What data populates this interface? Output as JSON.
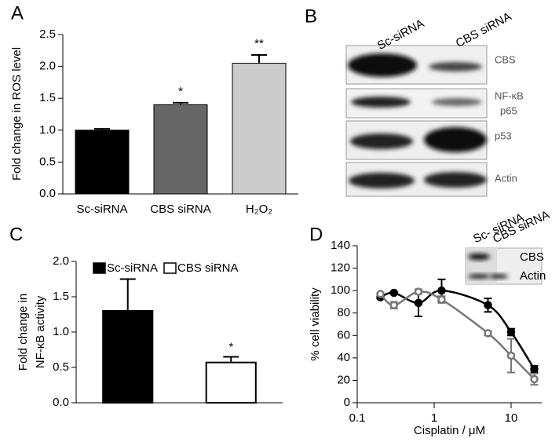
{
  "chart_data": [
    {
      "type": "bar",
      "panel": "A",
      "ylabel": "Fold change in ROS level",
      "categories": [
        "Sc-siRNA",
        "CBS siRNA",
        "H₂O₂"
      ],
      "values": [
        1.0,
        1.4,
        2.05
      ],
      "errors": [
        0.02,
        0.03,
        0.13
      ],
      "annotations": [
        null,
        "*",
        "**"
      ],
      "colors": [
        "#000000",
        "#666666",
        "#cccccc"
      ],
      "ylim": [
        0,
        2.5
      ],
      "yticks": [
        {
          "value": 0,
          "label": "0.0"
        },
        0.5,
        {
          "value": 1,
          "label": "1.0"
        },
        1.5,
        {
          "value": 2,
          "label": "2.0"
        },
        2.5
      ]
    },
    {
      "type": "bar",
      "panel": "C",
      "ylabel": [
        "Fold change in",
        "NF-κB activity"
      ],
      "categories": [
        null
      ],
      "series": [
        {
          "name": "Sc-siRNA",
          "color": "#000000",
          "values": [
            1.3
          ],
          "errors": [
            0.45
          ]
        },
        {
          "name": "CBS siRNA",
          "color": "#ffffff",
          "values": [
            0.57
          ],
          "errors": [
            0.08
          ],
          "annotation": "*"
        }
      ],
      "ylim": [
        0,
        2
      ],
      "yticks": [
        {
          "value": 0,
          "label": "0.0"
        },
        0.5,
        {
          "value": 1,
          "label": "1.0"
        },
        1.5,
        {
          "value": 2,
          "label": "2.0"
        }
      ]
    },
    {
      "type": "scatter",
      "panel": "D",
      "ylabel": "% cell viability",
      "xlabel": "Cisplatin / μM",
      "log_x": true,
      "x": [
        0.2,
        0.3,
        0.625,
        1.25,
        5,
        10,
        20
      ],
      "series": [
        {
          "color": "#000000",
          "values": [
            94,
            98,
            89,
            100,
            87,
            63,
            30
          ],
          "errors": [
            1,
            1,
            12,
            10,
            6,
            3,
            3
          ]
        },
        {
          "color": "#777777",
          "values": [
            97,
            87,
            99,
            92,
            62,
            42,
            21
          ],
          "errors": [
            1,
            3,
            2,
            3,
            2,
            15,
            5
          ]
        }
      ],
      "xlim": [
        0.1,
        25
      ],
      "xticks": [
        0.1,
        1,
        10
      ],
      "ylim": [
        0,
        140
      ],
      "yticks": [
        0,
        20,
        40,
        60,
        80,
        100,
        120,
        140
      ],
      "inset": {
        "lanes": [
          "Sc- siRNA",
          "CBS siRNA"
        ],
        "bands": [
          "CBS",
          "Actin"
        ]
      }
    }
  ],
  "blot": {
    "panel": "B",
    "lanes": [
      "Sc-siRNA",
      "CBS siRNA"
    ],
    "bands": [
      [
        "CBS"
      ],
      [
        "NF-κB",
        "p65"
      ],
      [
        "p53"
      ],
      [
        "Actin"
      ]
    ]
  }
}
